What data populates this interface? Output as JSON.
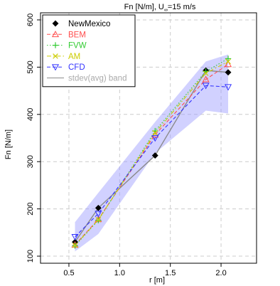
{
  "chart_data": {
    "type": "line",
    "title_main": "Fn [N/m], U",
    "title_sub": "∞",
    "title_tail": "=15 m/s",
    "xlabel": "r [m]",
    "ylabel": "Fn [N/m]",
    "xlim": [
      0.22,
      2.35
    ],
    "ylim": [
      85,
      615
    ],
    "xticks": [
      0.5,
      1.0,
      1.5,
      2.0
    ],
    "xtick_labels": [
      "0.5",
      "1.0",
      "1.5",
      "2.0"
    ],
    "yticks": [
      100,
      200,
      300,
      400,
      500,
      600
    ],
    "ytick_labels": [
      "100",
      "200",
      "300",
      "400",
      "500",
      "600"
    ],
    "grid": true,
    "legend_position": "top-left",
    "series": [
      {
        "name": "NewMexico",
        "color": "#000000",
        "marker": "diamond",
        "linestyle": "solid",
        "line_color": "#8a8a8a",
        "x": [
          0.56,
          0.79,
          1.35,
          1.85,
          2.07
        ],
        "y": [
          130,
          202,
          313,
          493,
          489
        ]
      },
      {
        "name": "BEM",
        "color": "#ff4d4d",
        "marker": "triangle-up",
        "linestyle": "dashed",
        "x": [
          0.56,
          0.79,
          1.35,
          1.85,
          2.07
        ],
        "y": [
          124,
          178,
          357,
          474,
          506
        ]
      },
      {
        "name": "FVW",
        "color": "#33cc33",
        "marker": "plus",
        "linestyle": "dotted",
        "x": [
          0.56,
          0.79,
          1.35,
          1.85,
          2.07
        ],
        "y": [
          122,
          176,
          365,
          491,
          518
        ]
      },
      {
        "name": "AM",
        "color": "#cccc00",
        "marker": "cross",
        "linestyle": "dashdot",
        "x": [
          0.56,
          0.79,
          1.35,
          1.85,
          2.07
        ],
        "y": [
          123,
          177,
          361,
          487,
          512
        ]
      },
      {
        "name": "CFD",
        "color": "#3333ff",
        "marker": "triangle-down",
        "linestyle": "dashed",
        "x": [
          0.56,
          0.79,
          1.35,
          1.85,
          2.07
        ],
        "y": [
          141,
          190,
          350,
          461,
          458
        ]
      },
      {
        "name": "stdev(avg) band",
        "color": "#9999ff",
        "type": "band",
        "x": [
          0.56,
          0.79,
          1.35,
          1.85,
          2.07
        ],
        "y_low": [
          110,
          147,
          318,
          408,
          402
        ],
        "y_high": [
          172,
          234,
          384,
          512,
          527
        ]
      }
    ]
  }
}
